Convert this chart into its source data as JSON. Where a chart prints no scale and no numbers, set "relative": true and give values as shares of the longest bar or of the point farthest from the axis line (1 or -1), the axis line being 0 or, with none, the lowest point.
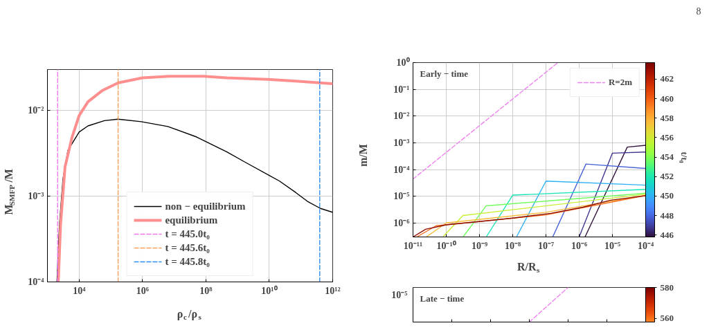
{
  "chart_data": [
    {
      "type": "line",
      "xlabel": "ρ$_{c}$/ρ$_{s}$",
      "ylabel": "M$_{SMFP}$/M",
      "log": "xy",
      "grid": true,
      "legend": "bottom",
      "xlim": [
        1000,
        1000000000000.0
      ],
      "ylim": [
        0.0001,
        0.03
      ],
      "xticks": [
        {
          "value": 10000.0,
          "label": "10⁴"
        },
        {
          "value": 1000000.0,
          "label": "10⁶"
        },
        {
          "value": 100000000.0,
          "label": "10⁸"
        },
        {
          "value": 10000000000.0,
          "label": "10¹⁰"
        },
        {
          "value": 1000000000000.0,
          "label": "10¹²"
        }
      ],
      "yticks": [
        {
          "value": 0.0001,
          "label": "10⁻⁴"
        },
        {
          "value": 0.001,
          "label": "10⁻³"
        },
        {
          "value": 0.01,
          "label": "10⁻²"
        }
      ],
      "series": [
        {
          "name": "non − equilibrium",
          "color": "#000000",
          "x": [
            2000,
            2400,
            3100,
            4400,
            10000,
            19000,
            63000,
            170000,
            910000,
            6300000,
            51000000,
            450000000,
            1700000000,
            21000000000,
            69000000000,
            160000000000,
            410000000000,
            980000000000
          ],
          "values": [
            0.0001,
            0.00047,
            0.0016,
            0.0034,
            0.0056,
            0.0066,
            0.0076,
            0.0079,
            0.0074,
            0.0065,
            0.0049,
            0.0033,
            0.0025,
            0.0015,
            0.0011,
            0.00087,
            0.00072,
            0.00065
          ]
        },
        {
          "name": "equilibrium",
          "color": "#ff8f8f",
          "x": [
            2200,
            2600,
            3600,
            6000,
            10000,
            19000,
            53000,
            170000,
            1000000,
            6900000,
            85000000,
            450000000,
            9100000000,
            69000000000,
            980000000000
          ],
          "values": [
            0.0001,
            0.00047,
            0.0022,
            0.0049,
            0.0087,
            0.0126,
            0.017,
            0.021,
            0.024,
            0.025,
            0.025,
            0.024,
            0.023,
            0.022,
            0.0205
          ]
        },
        {
          "name": "t = 445.0t₀",
          "color": "#ee77ee",
          "line_style": "dashed",
          "x": [
            2100,
            2100
          ],
          "values": [
            0.0001,
            0.03
          ]
        },
        {
          "name": "t = 445.6t₀",
          "color": "#f5a05a",
          "line_style": "dashed",
          "x": [
            170000,
            170000
          ],
          "values": [
            0.0001,
            0.03
          ]
        },
        {
          "name": "t = 445.8t₀",
          "color": "#2a8cf0",
          "line_style": "dashed",
          "x": [
            390000000000,
            390000000000
          ],
          "values": [
            0.0001,
            0.03
          ]
        }
      ]
    },
    {
      "type": "line",
      "xlabel": "R/R$_{s}$",
      "ylabel": "m/M",
      "clabel": "t/t₀",
      "log": "xy",
      "grid": true,
      "legend": "top right",
      "annotations": [
        "Early − time",
        "8"
      ],
      "xlim": [
        1e-11,
        0.0001
      ],
      "ylim": [
        3e-07,
        1
      ],
      "xticks": [
        {
          "value": 1e-11,
          "label": "10⁻¹¹"
        },
        {
          "value": 1e-10,
          "label": "10⁻¹⁰"
        },
        {
          "value": 1e-09,
          "label": "10⁻⁹"
        },
        {
          "value": 1e-08,
          "label": "10⁻⁸"
        },
        {
          "value": 1e-07,
          "label": "10⁻⁷"
        },
        {
          "value": 1e-06,
          "label": "10⁻⁶"
        },
        {
          "value": 1e-05,
          "label": "10⁻⁵"
        },
        {
          "value": 0.0001,
          "label": "10⁻⁴"
        }
      ],
      "yticks": [
        {
          "value": 1e-06,
          "label": "10⁻⁶"
        },
        {
          "value": 1e-05,
          "label": "10⁻⁵"
        },
        {
          "value": 0.0001,
          "label": "10⁻⁴"
        },
        {
          "value": 0.001,
          "label": "10⁻³"
        },
        {
          "value": 0.01,
          "label": "10⁻²"
        },
        {
          "value": 0.1,
          "label": "10⁻¹"
        },
        {
          "value": 1,
          "label": "10⁰"
        }
      ],
      "clim": [
        445.8,
        463.7
      ],
      "cticks": [
        446,
        448,
        450,
        452,
        454,
        456,
        458,
        460,
        462
      ],
      "series": [
        {
          "name": "R=2m",
          "color": "#ee82ee",
          "line_style": "dashed",
          "x": [
            1e-11,
            2.3e-07
          ],
          "values": [
            4.4e-05,
            1
          ]
        },
        {
          "color": "#30123b",
          "x": [
            1.5e-06,
            2.8e-05,
            0.0001
          ],
          "values": [
            3e-07,
            0.00069,
            0.00081
          ]
        },
        {
          "color": "#3e378f",
          "x": [
            1e-06,
            1e-05,
            0.0001
          ],
          "values": [
            3e-07,
            0.00041,
            0.00045
          ]
        },
        {
          "color": "#4662d7",
          "x": [
            1.6e-07,
            1.6e-06,
            0.0001
          ],
          "values": [
            3e-07,
            0.00016,
            0.00011
          ]
        },
        {
          "color": "#2fb2f4",
          "x": [
            1.3e-08,
            1e-07,
            0.0001
          ],
          "values": [
            3e-07,
            3.7e-05,
            2.6e-05
          ]
        },
        {
          "color": "#1ae4b6",
          "x": [
            1.6e-09,
            1e-08,
            0.0001
          ],
          "values": [
            3e-07,
            1.1e-05,
            1.8e-05
          ]
        },
        {
          "color": "#72fe5e",
          "x": [
            3.2e-10,
            1.6e-09,
            0.0001
          ],
          "values": [
            3e-07,
            4.4e-06,
            1.3e-05
          ]
        },
        {
          "color": "#c8ef34",
          "x": [
            7.9e-11,
            3.2e-10,
            0.0001
          ],
          "values": [
            3e-07,
            1.9e-06,
            1.2e-05
          ]
        },
        {
          "color": "#faba39",
          "x": [
            2.5e-11,
            1e-10,
            1e-07,
            0.0001
          ],
          "values": [
            3e-07,
            1e-06,
            2.5e-06,
            1.1e-05
          ]
        },
        {
          "color": "#f66b19",
          "x": [
            1.3e-11,
            5e-11,
            1e-07,
            0.0001
          ],
          "values": [
            3e-07,
            7.9e-07,
            2e-06,
            1.07e-05
          ]
        },
        {
          "color": "#8c0d02",
          "x": [
            1e-11,
            2.4e-11,
            1e-10,
            1.1e-09,
            1.1e-08,
            1.4e-07,
            1.3e-06,
            8.9e-06,
            0.0001
          ],
          "values": [
            3e-07,
            5.8e-07,
            8.5e-07,
            1.15e-06,
            1.55e-06,
            2.3e-06,
            3.9e-06,
            7.1e-06,
            1.05e-05
          ]
        }
      ]
    },
    {
      "type": "line",
      "relative": true,
      "annotations": [
        "Late − time",
        "10⁻⁵"
      ],
      "categories": [
        null,
        null,
        null,
        null,
        null,
        null,
        null
      ],
      "clim": [
        557.7,
        580
      ],
      "cticks": [
        560,
        580
      ],
      "series": [
        {
          "color": "#ee82ee",
          "line_style": "dashed",
          "values": [
            null,
            null,
            null,
            0,
            1,
            null,
            null
          ]
        }
      ]
    }
  ]
}
